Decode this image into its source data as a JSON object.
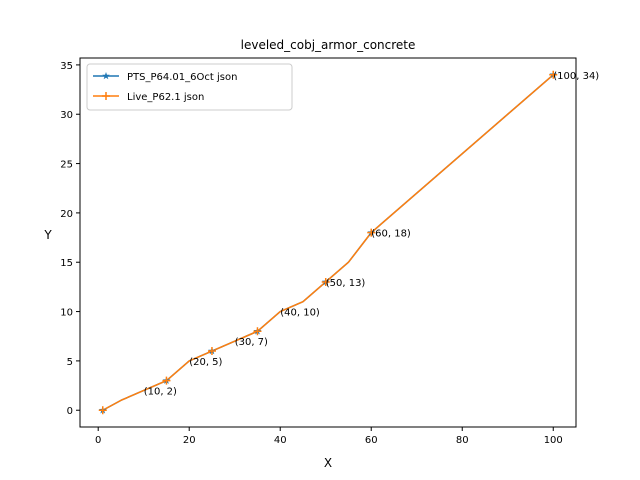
{
  "chart_data": {
    "type": "line",
    "title": "leveled_cobj_armor_concrete",
    "xlabel": "X",
    "ylabel": "Y",
    "xlim": [
      -4,
      105
    ],
    "ylim": [
      -1.7,
      35.7
    ],
    "xticks": [
      0,
      20,
      40,
      60,
      80,
      100
    ],
    "yticks": [
      0,
      5,
      10,
      15,
      20,
      25,
      30,
      35
    ],
    "grid": false,
    "legend_position": "top-left",
    "series": [
      {
        "name": "PTS_P64.01_6Oct json",
        "color": "#1f77b4",
        "marker": "star",
        "x": [
          1,
          5,
          10,
          15,
          20,
          25,
          30,
          35,
          40,
          45,
          50,
          55,
          60,
          100
        ],
        "y": [
          0,
          1,
          2,
          3,
          5,
          6,
          7,
          8,
          10,
          11,
          13,
          15,
          18,
          34
        ]
      },
      {
        "name": "Live_P62.1 json",
        "color": "#ff7f0e",
        "marker": "plus",
        "x": [
          1,
          5,
          10,
          15,
          20,
          25,
          30,
          35,
          40,
          45,
          50,
          55,
          60,
          100
        ],
        "y": [
          0,
          1,
          2,
          3,
          5,
          6,
          7,
          8,
          10,
          11,
          13,
          15,
          18,
          34
        ]
      }
    ],
    "markers_x": [
      1,
      15,
      25,
      35,
      50,
      60,
      100
    ],
    "annotations": [
      {
        "text": "(10, 2)",
        "x": 10,
        "y": 2
      },
      {
        "text": "(20, 5)",
        "x": 20,
        "y": 5
      },
      {
        "text": "(30, 7)",
        "x": 30,
        "y": 7
      },
      {
        "text": "(40, 10)",
        "x": 40,
        "y": 10
      },
      {
        "text": "(50, 13)",
        "x": 50,
        "y": 13
      },
      {
        "text": "(60, 18)",
        "x": 60,
        "y": 18
      },
      {
        "text": "(100, 34)",
        "x": 100,
        "y": 34
      }
    ]
  }
}
